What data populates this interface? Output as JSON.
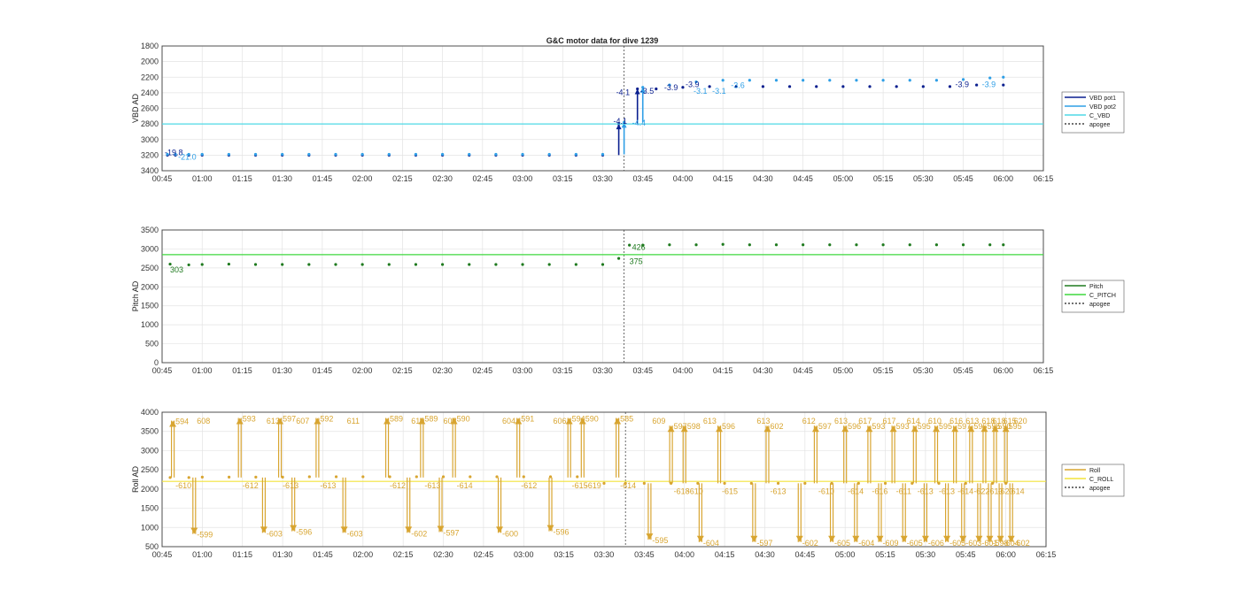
{
  "chart_data": [
    {
      "type": "line",
      "title": "G&C motor data for dive 1239",
      "ylabel": "VBD AD",
      "xlim": [
        "00:45",
        "06:15"
      ],
      "ylim": [
        1800,
        3400
      ],
      "y_reversed": true,
      "x_ticks": [
        "00:45",
        "01:00",
        "01:15",
        "01:30",
        "01:45",
        "02:00",
        "02:15",
        "02:30",
        "02:45",
        "03:00",
        "03:15",
        "03:30",
        "03:45",
        "04:00",
        "04:15",
        "04:30",
        "04:45",
        "05:00",
        "05:15",
        "05:30",
        "05:45",
        "06:00",
        "06:15"
      ],
      "y_ticks": [
        "1800",
        "2000",
        "2200",
        "2400",
        "2600",
        "2800",
        "3000",
        "3200",
        "3400"
      ],
      "grid": true,
      "legend_position": "outside-right",
      "apogee": "03:38",
      "series": [
        {
          "name": "VBD pot1",
          "color": "#0a1f8f",
          "x": [
            "00:47",
            "00:50",
            "00:55",
            "01:00",
            "01:10",
            "01:20",
            "01:30",
            "01:40",
            "01:50",
            "02:00",
            "02:10",
            "02:20",
            "02:30",
            "02:40",
            "02:50",
            "03:00",
            "03:10",
            "03:20",
            "03:30",
            "03:36",
            "03:43",
            "03:50",
            "04:00",
            "04:10",
            "04:20",
            "04:30",
            "04:40",
            "04:50",
            "05:00",
            "05:10",
            "05:20",
            "05:30",
            "05:40",
            "05:50",
            "06:00"
          ],
          "y": [
            3200,
            3200,
            3200,
            3200,
            3200,
            3200,
            3200,
            3200,
            3200,
            3200,
            3200,
            3200,
            3200,
            3200,
            3200,
            3200,
            3200,
            3200,
            3200,
            2800,
            2350,
            2350,
            2330,
            2320,
            2320,
            2320,
            2320,
            2320,
            2320,
            2320,
            2320,
            2320,
            2320,
            2300,
            2300
          ]
        },
        {
          "name": "VBD pot2",
          "color": "#2f9fe6",
          "x": [
            "00:47",
            "00:50",
            "00:55",
            "01:00",
            "01:10",
            "01:20",
            "01:30",
            "01:40",
            "01:50",
            "02:00",
            "02:10",
            "02:20",
            "02:30",
            "02:40",
            "02:50",
            "03:00",
            "03:10",
            "03:20",
            "03:30",
            "03:38",
            "03:45",
            "03:55",
            "04:05",
            "04:15",
            "04:25",
            "04:35",
            "04:45",
            "04:55",
            "05:05",
            "05:15",
            "05:25",
            "05:35",
            "05:45",
            "05:55",
            "06:00"
          ],
          "y": [
            3190,
            3190,
            3190,
            3190,
            3190,
            3190,
            3190,
            3190,
            3190,
            3190,
            3190,
            3190,
            3190,
            3190,
            3190,
            3190,
            3190,
            3190,
            3190,
            2780,
            2330,
            2300,
            2260,
            2240,
            2240,
            2240,
            2240,
            2240,
            2240,
            2240,
            2240,
            2240,
            2230,
            2210,
            2200
          ]
        },
        {
          "name": "C_VBD",
          "color": "#4fd8e6",
          "x": [
            "00:45",
            "06:15"
          ],
          "y": [
            2800,
            2800
          ]
        },
        {
          "name": "apogee",
          "color": "#444444"
        }
      ],
      "annotations": [
        {
          "text": "-19.8",
          "x": "00:46",
          "y": 3200,
          "color": "#0a1f8f"
        },
        {
          "text": "-21.0",
          "x": "00:51",
          "y": 3260,
          "color": "#2f9fe6"
        },
        {
          "text": "-4.1",
          "x": "03:35",
          "y": 2430,
          "color": "#0a1f8f"
        },
        {
          "text": "-4.1",
          "x": "03:34",
          "y": 2800,
          "color": "#0a1f8f"
        },
        {
          "text": "-4.4",
          "x": "03:41",
          "y": 2820,
          "color": "#2f9fe6"
        },
        {
          "text": "-3.5",
          "x": "03:44",
          "y": 2410,
          "color": "#0a1f8f"
        },
        {
          "text": "-3.9",
          "x": "03:53",
          "y": 2370,
          "color": "#0a1f8f"
        },
        {
          "text": "-3.9",
          "x": "04:01",
          "y": 2330,
          "color": "#0a1f8f"
        },
        {
          "text": "-3.1",
          "x": "04:04",
          "y": 2410,
          "color": "#2f9fe6"
        },
        {
          "text": "-3.1",
          "x": "04:11",
          "y": 2410,
          "color": "#2f9fe6"
        },
        {
          "text": "-3.6",
          "x": "04:18",
          "y": 2340,
          "color": "#2f9fe6"
        },
        {
          "text": "-3.9",
          "x": "05:42",
          "y": 2330,
          "color": "#0a1f8f"
        },
        {
          "text": "-3.9",
          "x": "05:52",
          "y": 2330,
          "color": "#2f9fe6"
        }
      ]
    },
    {
      "type": "line",
      "ylabel": "Pitch AD",
      "xlim": [
        "00:45",
        "06:15"
      ],
      "ylim": [
        0,
        3500
      ],
      "x_ticks": [
        "00:45",
        "01:00",
        "01:15",
        "01:30",
        "01:45",
        "02:00",
        "02:15",
        "02:30",
        "02:45",
        "03:00",
        "03:15",
        "03:30",
        "03:45",
        "04:00",
        "04:15",
        "04:30",
        "04:45",
        "05:00",
        "05:15",
        "05:30",
        "05:45",
        "06:00",
        "06:15"
      ],
      "y_ticks": [
        "0",
        "500",
        "1000",
        "1500",
        "2000",
        "2500",
        "3000",
        "3500"
      ],
      "grid": true,
      "legend_position": "outside-right",
      "apogee": "03:38",
      "series": [
        {
          "name": "Pitch",
          "color": "#1f7a1f",
          "x": [
            "00:48",
            "00:55",
            "01:00",
            "01:10",
            "01:20",
            "01:30",
            "01:40",
            "01:50",
            "02:00",
            "02:10",
            "02:20",
            "02:30",
            "02:40",
            "02:50",
            "03:00",
            "03:10",
            "03:20",
            "03:30",
            "03:36",
            "03:40",
            "03:45",
            "03:55",
            "04:05",
            "04:15",
            "04:25",
            "04:35",
            "04:45",
            "04:55",
            "05:05",
            "05:15",
            "05:25",
            "05:35",
            "05:45",
            "05:55",
            "06:00"
          ],
          "y": [
            2600,
            2580,
            2590,
            2600,
            2590,
            2590,
            2590,
            2590,
            2590,
            2590,
            2590,
            2590,
            2590,
            2590,
            2590,
            2590,
            2590,
            2590,
            2750,
            3100,
            3100,
            3110,
            3110,
            3120,
            3110,
            3110,
            3110,
            3110,
            3110,
            3110,
            3110,
            3110,
            3110,
            3110,
            3110
          ]
        },
        {
          "name": "C_PITCH",
          "color": "#3fd83f",
          "x": [
            "00:45",
            "06:15"
          ],
          "y": [
            2850,
            2850
          ]
        },
        {
          "name": "apogee",
          "color": "#444444"
        }
      ],
      "annotations": [
        {
          "text": "303",
          "x": "00:48",
          "y": 2380,
          "color": "#1f7a1f"
        },
        {
          "text": "426",
          "x": "03:41",
          "y": 2970,
          "color": "#1f7a1f"
        },
        {
          "text": "375",
          "x": "03:40",
          "y": 2600,
          "color": "#1f7a1f"
        }
      ]
    },
    {
      "type": "line",
      "ylabel": "Roll AD",
      "xlim": [
        "00:45",
        "06:15"
      ],
      "ylim": [
        500,
        4000
      ],
      "x_ticks": [
        "00:45",
        "01:00",
        "01:15",
        "01:30",
        "01:45",
        "02:00",
        "02:15",
        "02:30",
        "02:45",
        "03:00",
        "03:15",
        "03:30",
        "03:45",
        "04:00",
        "04:15",
        "04:30",
        "04:45",
        "05:00",
        "05:15",
        "05:30",
        "05:45",
        "06:00",
        "06:15"
      ],
      "y_ticks": [
        "500",
        "1000",
        "1500",
        "2000",
        "2500",
        "3000",
        "3500",
        "4000"
      ],
      "grid": true,
      "legend_position": "outside-right",
      "apogee": "03:38",
      "series": [
        {
          "name": "Roll",
          "color": "#d8a531",
          "x": [
            "00:48",
            "00:55",
            "01:00",
            "01:10",
            "01:20",
            "01:30",
            "01:40",
            "01:50",
            "02:00",
            "02:10",
            "02:20",
            "02:30",
            "02:40",
            "02:50",
            "03:00",
            "03:10",
            "03:20",
            "03:30",
            "03:38",
            "03:45",
            "03:55",
            "04:05",
            "04:15",
            "04:25",
            "04:35",
            "04:45",
            "04:55",
            "05:05",
            "05:15",
            "05:25",
            "05:35",
            "05:45",
            "05:55",
            "06:00"
          ],
          "y": [
            2300,
            2300,
            2310,
            2310,
            2310,
            2310,
            2320,
            2320,
            2320,
            2320,
            2320,
            2320,
            2320,
            2320,
            2320,
            2320,
            2320,
            2150,
            2150,
            2150,
            2150,
            2150,
            2150,
            2150,
            2150,
            2150,
            2150,
            2150,
            2150,
            2150,
            2150,
            2150,
            2150,
            2150
          ]
        },
        {
          "name": "C_ROLL",
          "color": "#f2e43a",
          "x": [
            "00:45",
            "06:15"
          ],
          "y": [
            2200,
            2200
          ]
        },
        {
          "name": "apogee",
          "color": "#444444"
        }
      ],
      "roll_moves": [
        {
          "x": "00:49",
          "y0": 2300,
          "y1": 3780,
          "up": "594",
          "down": "-610"
        },
        {
          "x": "00:57",
          "y0": 2300,
          "y1": 830,
          "up": "608",
          "down": "-599"
        },
        {
          "x": "01:14",
          "y0": 2300,
          "y1": 3850,
          "up": "593",
          "down": "-612"
        },
        {
          "x": "01:23",
          "y0": 2300,
          "y1": 860,
          "up": "613",
          "down": "-603"
        },
        {
          "x": "01:29",
          "y0": 2300,
          "y1": 3850,
          "up": "597",
          "down": "-613"
        },
        {
          "x": "01:34",
          "y0": 2300,
          "y1": 900,
          "up": "607",
          "down": "-596"
        },
        {
          "x": "01:43",
          "y0": 2300,
          "y1": 3850,
          "up": "592",
          "down": "-613"
        },
        {
          "x": "01:53",
          "y0": 2300,
          "y1": 860,
          "up": "611",
          "down": "-603"
        },
        {
          "x": "02:09",
          "y0": 2300,
          "y1": 3850,
          "up": "589",
          "down": "-612"
        },
        {
          "x": "02:17",
          "y0": 2300,
          "y1": 860,
          "up": "610",
          "down": "-602"
        },
        {
          "x": "02:22",
          "y0": 2300,
          "y1": 3850,
          "up": "589",
          "down": "-613"
        },
        {
          "x": "02:29",
          "y0": 2300,
          "y1": 880,
          "up": "608",
          "down": "-597"
        },
        {
          "x": "02:34",
          "y0": 2300,
          "y1": 3850,
          "up": "590",
          "down": "-614"
        },
        {
          "x": "02:51",
          "y0": 2300,
          "y1": 860,
          "up": "604",
          "down": "-600"
        },
        {
          "x": "02:58",
          "y0": 2300,
          "y1": 3850,
          "up": "591",
          "down": "-612"
        },
        {
          "x": "03:10",
          "y0": 2300,
          "y1": 900,
          "up": "606",
          "down": "-596"
        },
        {
          "x": "03:17",
          "y0": 2300,
          "y1": 3850,
          "up": "594",
          "down": "-615"
        },
        {
          "x": "03:22",
          "y0": 2300,
          "y1": 3850,
          "up": "590",
          "down": "-619"
        },
        {
          "x": "03:35",
          "y0": 2300,
          "y1": 3850,
          "up": "585",
          "down": "-614"
        },
        {
          "x": "03:47",
          "y0": 2150,
          "y1": 680,
          "up": "609",
          "down": "-595"
        },
        {
          "x": "03:55",
          "y0": 2150,
          "y1": 3650,
          "up": "597",
          "down": "-618"
        },
        {
          "x": "04:00",
          "y0": 2150,
          "y1": 3650,
          "up": "598",
          "down": "-610"
        },
        {
          "x": "04:06",
          "y0": 2150,
          "y1": 620,
          "up": "613",
          "down": "-604"
        },
        {
          "x": "04:13",
          "y0": 2150,
          "y1": 3650,
          "up": "596",
          "down": "-615"
        },
        {
          "x": "04:26",
          "y0": 2150,
          "y1": 620,
          "up": "613",
          "down": "-597"
        },
        {
          "x": "04:31",
          "y0": 2150,
          "y1": 3650,
          "up": "602",
          "down": "-613"
        },
        {
          "x": "04:43",
          "y0": 2150,
          "y1": 620,
          "up": "612",
          "down": "-602"
        },
        {
          "x": "04:49",
          "y0": 2150,
          "y1": 3650,
          "up": "597",
          "down": "-610"
        },
        {
          "x": "04:55",
          "y0": 2150,
          "y1": 620,
          "up": "613",
          "down": "-605"
        },
        {
          "x": "05:00",
          "y0": 2150,
          "y1": 3650,
          "up": "596",
          "down": "-614"
        },
        {
          "x": "05:04",
          "y0": 2150,
          "y1": 620,
          "up": "617",
          "down": "-604"
        },
        {
          "x": "05:09",
          "y0": 2150,
          "y1": 3650,
          "up": "593",
          "down": "-616"
        },
        {
          "x": "05:13",
          "y0": 2150,
          "y1": 620,
          "up": "617",
          "down": "-609"
        },
        {
          "x": "05:18",
          "y0": 2150,
          "y1": 3650,
          "up": "593",
          "down": "-611"
        },
        {
          "x": "05:22",
          "y0": 2150,
          "y1": 620,
          "up": "614",
          "down": "-605"
        },
        {
          "x": "05:26",
          "y0": 2150,
          "y1": 3650,
          "up": "595",
          "down": "-613"
        },
        {
          "x": "05:30",
          "y0": 2150,
          "y1": 620,
          "up": "610",
          "down": "-606"
        },
        {
          "x": "05:34",
          "y0": 2150,
          "y1": 3650,
          "up": "595",
          "down": "-613"
        },
        {
          "x": "05:38",
          "y0": 2150,
          "y1": 620,
          "up": "616",
          "down": "-605"
        },
        {
          "x": "05:41",
          "y0": 2150,
          "y1": 3650,
          "up": "597",
          "down": "-614"
        },
        {
          "x": "05:44",
          "y0": 2150,
          "y1": 620,
          "up": "613",
          "down": "-603"
        },
        {
          "x": "05:47",
          "y0": 2150,
          "y1": 3650,
          "up": "596",
          "down": "-622"
        },
        {
          "x": "05:50",
          "y0": 2150,
          "y1": 620,
          "up": "618",
          "down": "-601"
        },
        {
          "x": "05:52",
          "y0": 2150,
          "y1": 3650,
          "up": "595",
          "down": "-613"
        },
        {
          "x": "05:54",
          "y0": 2150,
          "y1": 620,
          "up": "618",
          "down": "-598"
        },
        {
          "x": "05:56",
          "y0": 2150,
          "y1": 3650,
          "up": "590",
          "down": "-620"
        },
        {
          "x": "05:58",
          "y0": 2150,
          "y1": 620,
          "up": "615",
          "down": "-604"
        },
        {
          "x": "06:00",
          "y0": 2150,
          "y1": 3650,
          "up": "595",
          "down": "-614"
        },
        {
          "x": "06:02",
          "y0": 2150,
          "y1": 620,
          "up": "620",
          "down": "-602"
        }
      ]
    }
  ]
}
